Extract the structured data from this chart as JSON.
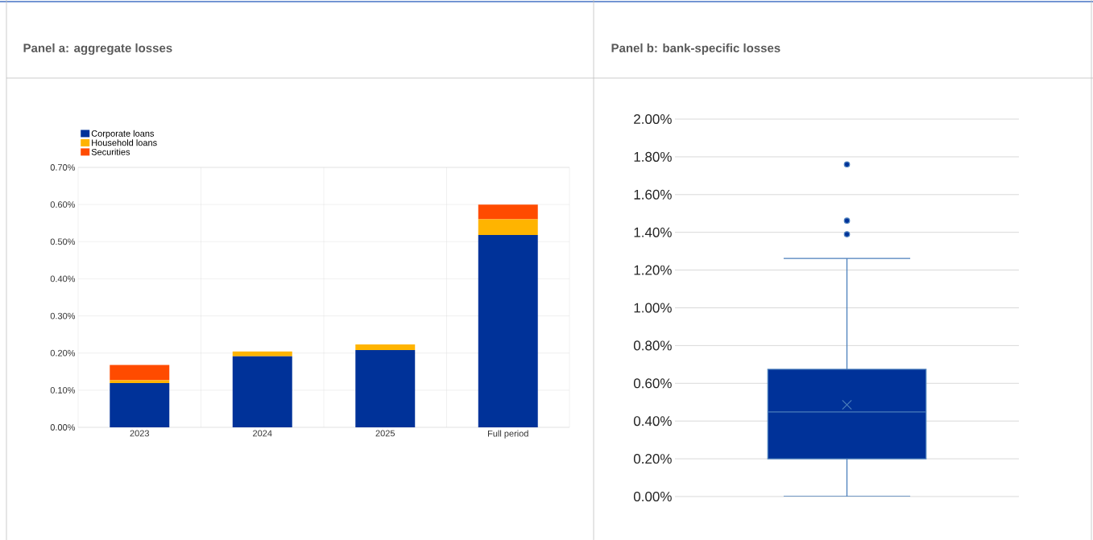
{
  "chart_data": [
    {
      "type": "bar",
      "title": "Panel a: aggregate losses",
      "stacked": true,
      "categories": [
        "2023",
        "2024",
        "2025",
        "Full period"
      ],
      "series": [
        {
          "name": "Corporate loans",
          "color": "#003299",
          "values": [
            0.119,
            0.191,
            0.208,
            0.518
          ]
        },
        {
          "name": "Household loans",
          "color": "#ffb400",
          "values": [
            0.008,
            0.013,
            0.015,
            0.042
          ]
        },
        {
          "name": "Securities",
          "color": "#ff4b00",
          "values": [
            0.041,
            0,
            0,
            0.04
          ]
        }
      ],
      "ylim": [
        0,
        0.7
      ],
      "yticks": [
        {
          "value": 0,
          "label": "0.00%"
        },
        {
          "value": 0.1,
          "label": "0.10%"
        },
        {
          "value": 0.2,
          "label": "0.20%"
        },
        {
          "value": 0.3,
          "label": "0.30%"
        },
        {
          "value": 0.4,
          "label": "0.40%"
        },
        {
          "value": 0.5,
          "label": "0.50%"
        },
        {
          "value": 0.6,
          "label": "0.60%"
        },
        {
          "value": 0.7,
          "label": "0.70%"
        }
      ],
      "grid": true,
      "legend": "top left"
    },
    {
      "type": "box",
      "title": "Panel b: bank-specific losses",
      "categories": [
        null
      ],
      "color": "#003299",
      "boxes": [
        {
          "low": 0,
          "q1": 0.2,
          "median": 0.448,
          "q3": 0.674,
          "high": 1.262,
          "mean": 0.486,
          "outliers": [
            1.76,
            1.462,
            1.39
          ]
        }
      ],
      "ylim": [
        0,
        2.0
      ],
      "yticks": [
        {
          "value": 0,
          "label": "0.00%"
        },
        {
          "value": 0.2,
          "label": "0.20%"
        },
        {
          "value": 0.4,
          "label": "0.40%"
        },
        {
          "value": 0.6,
          "label": "0.60%"
        },
        {
          "value": 0.8,
          "label": "0.80%"
        },
        {
          "value": 1.0,
          "label": "1.00%"
        },
        {
          "value": 1.2,
          "label": "1.20%"
        },
        {
          "value": 1.4,
          "label": "1.40%"
        },
        {
          "value": 1.6,
          "label": "1.60%"
        },
        {
          "value": 1.8,
          "label": "1.80%"
        },
        {
          "value": 2.0,
          "label": "2.00%"
        }
      ],
      "grid": "y",
      "marker": "circle"
    }
  ]
}
